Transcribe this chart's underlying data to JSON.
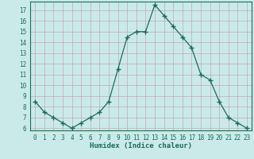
{
  "xlabel": "Humidex (Indice chaleur)",
  "x": [
    0,
    1,
    2,
    3,
    4,
    5,
    6,
    7,
    8,
    9,
    10,
    11,
    12,
    13,
    14,
    15,
    16,
    17,
    18,
    19,
    20,
    21,
    22,
    23
  ],
  "y": [
    8.5,
    7.5,
    7.0,
    6.5,
    6.0,
    6.5,
    7.0,
    7.5,
    8.5,
    11.5,
    14.5,
    15.0,
    15.0,
    17.5,
    16.5,
    15.5,
    14.5,
    13.5,
    11.0,
    10.5,
    8.5,
    7.0,
    6.5,
    6.0
  ],
  "line_color": "#1a6b5a",
  "marker": "P",
  "marker_size": 3,
  "bg_color": "#caeaea",
  "grid_color": "#c4a8a8",
  "xlim": [
    -0.5,
    23.5
  ],
  "ylim": [
    5.8,
    17.8
  ],
  "yticks": [
    6,
    7,
    8,
    9,
    10,
    11,
    12,
    13,
    14,
    15,
    16,
    17
  ],
  "xticks": [
    0,
    1,
    2,
    3,
    4,
    5,
    6,
    7,
    8,
    9,
    10,
    11,
    12,
    13,
    14,
    15,
    16,
    17,
    18,
    19,
    20,
    21,
    22,
    23
  ],
  "tick_fontsize": 5.5,
  "label_fontsize": 6.5
}
